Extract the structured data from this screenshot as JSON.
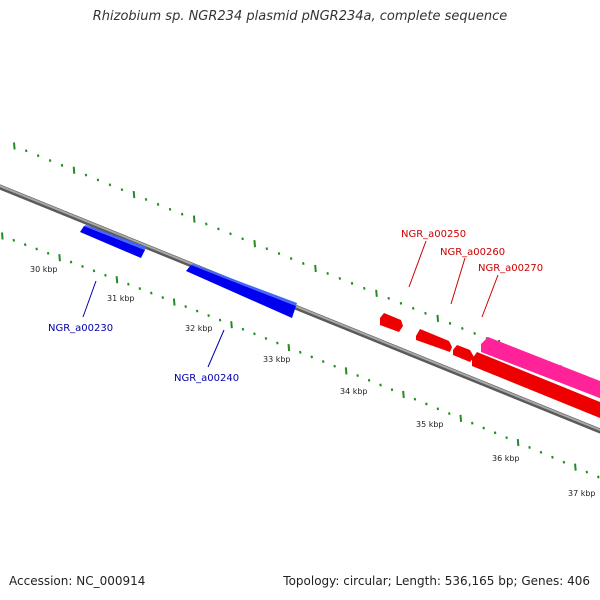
{
  "title": "Rhizobium sp. NGR234 plasmid pNGR234a, complete sequence",
  "footer": {
    "accession": "Accession: NC_000914",
    "topology": "Topology: circular; Length: 536,165 bp; Genes: 406"
  },
  "colors": {
    "backbone": "#8a8a8a",
    "ticks": "#228b22",
    "forward_gene": "#0000ee",
    "reverse_gene": "#ee0000",
    "highlight_gene": "#ff2299",
    "forward_label": "#0000aa",
    "reverse_label": "#cc0000"
  },
  "kbp_labels": [
    {
      "text": "30 kbp"
    },
    {
      "text": "31 kbp"
    },
    {
      "text": "32 kbp"
    },
    {
      "text": "33 kbp"
    },
    {
      "text": "34 kbp"
    },
    {
      "text": "35 kbp"
    },
    {
      "text": "36 kbp"
    },
    {
      "text": "37 kbp"
    }
  ],
  "genes": [
    {
      "label": "NGR_a00230",
      "strand": "forward"
    },
    {
      "label": "NGR_a00240",
      "strand": "forward"
    },
    {
      "label": "NGR_a00250",
      "strand": "reverse"
    },
    {
      "label": "NGR_a00260",
      "strand": "reverse"
    },
    {
      "label": "NGR_a00270",
      "strand": "reverse"
    }
  ]
}
